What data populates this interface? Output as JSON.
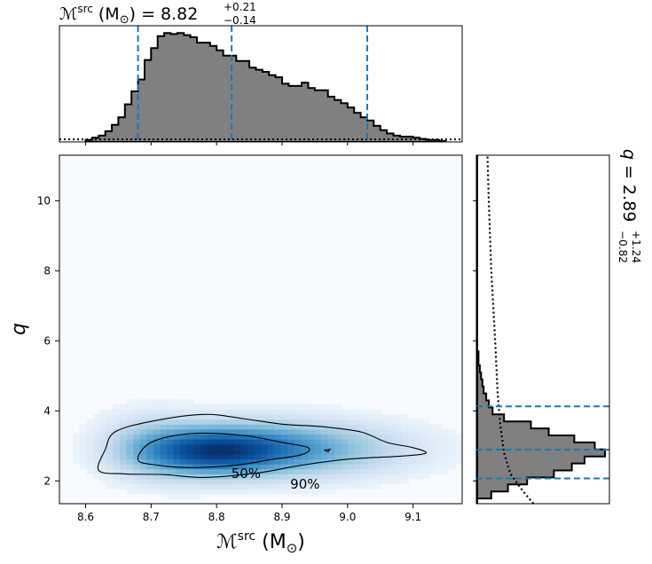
{
  "chart_data": [
    {
      "type": "histogram",
      "panel": "top-marginal",
      "title_prefix": "ℳ",
      "title_sup": "src",
      "title_unit": " (M",
      "title_unit_sub": "⊙",
      "title_unit_close": ")",
      "title_eq": " = 8.82",
      "title_plus": "+0.21",
      "title_minus": "−0.14",
      "median": 8.82,
      "err_plus": 0.21,
      "err_minus": 0.14,
      "quantile_lines": [
        8.68,
        8.823,
        9.03
      ],
      "xlim": [
        8.56,
        9.175
      ],
      "bins_start": 8.6,
      "bin_width": 0.01,
      "counts": [
        1,
        3,
        5,
        9,
        15,
        22,
        34,
        46,
        57,
        75,
        86,
        97,
        100,
        99,
        100,
        98,
        96,
        91,
        91,
        88,
        84,
        79,
        79,
        74,
        74,
        68,
        66,
        64,
        61,
        59,
        53,
        51,
        51,
        54,
        49,
        47,
        47,
        41,
        38,
        35,
        31,
        26,
        22,
        19,
        14,
        10,
        7,
        5,
        4,
        4,
        3,
        2,
        1,
        1,
        0
      ],
      "prior_level": 1.5
    },
    {
      "type": "heatmap",
      "panel": "joint",
      "x_variable": "chirp mass (source frame)",
      "y_variable": "q",
      "xlim": [
        8.56,
        9.175
      ],
      "ylim": [
        1.35,
        11.3
      ],
      "xticks": [
        "8.6",
        "8.7",
        "8.8",
        "8.9",
        "9.0",
        "9.1"
      ],
      "yticks": [
        "2",
        "4",
        "6",
        "8",
        "10"
      ],
      "xlabel_main": "ℳ",
      "xlabel_sup": "src",
      "xlabel_unit": " (M",
      "xlabel_unit_sub": "⊙",
      "xlabel_unit_close": ")",
      "ylabel": "q",
      "contour_labels": [
        "50%",
        "90%"
      ],
      "colormap": "Blues",
      "density_peak": [
        8.79,
        2.85
      ],
      "contour_color": "#000000"
    },
    {
      "type": "histogram",
      "panel": "right-marginal",
      "orientation": "horizontal",
      "title_var": "q",
      "title_eq": " = 2.89",
      "title_plus": "+1.24",
      "title_minus": "−0.82",
      "median": 2.89,
      "err_plus": 1.24,
      "err_minus": 0.82,
      "quantile_lines": [
        2.07,
        2.89,
        4.13
      ],
      "ylim": [
        1.35,
        11.3
      ],
      "bins_start": 1.5,
      "bin_width": 0.2,
      "counts": [
        11,
        24,
        39,
        60,
        74,
        84,
        100,
        92,
        76,
        56,
        42,
        21,
        12,
        9,
        7,
        5,
        4,
        3,
        2,
        1,
        1
      ],
      "prior_curve": [
        [
          1.35,
          44
        ],
        [
          1.7,
          36
        ],
        [
          2.2,
          26
        ],
        [
          2.8,
          21
        ],
        [
          3.6,
          18
        ],
        [
          4.5,
          16
        ],
        [
          6.0,
          14
        ],
        [
          8.0,
          11
        ],
        [
          10.0,
          9
        ],
        [
          11.3,
          8
        ]
      ]
    }
  ],
  "colors": {
    "histogram_fill": "#808080",
    "histogram_edge": "#000000",
    "quantile_line": "#1f77b4",
    "heatmap_peak": "#08306b"
  }
}
